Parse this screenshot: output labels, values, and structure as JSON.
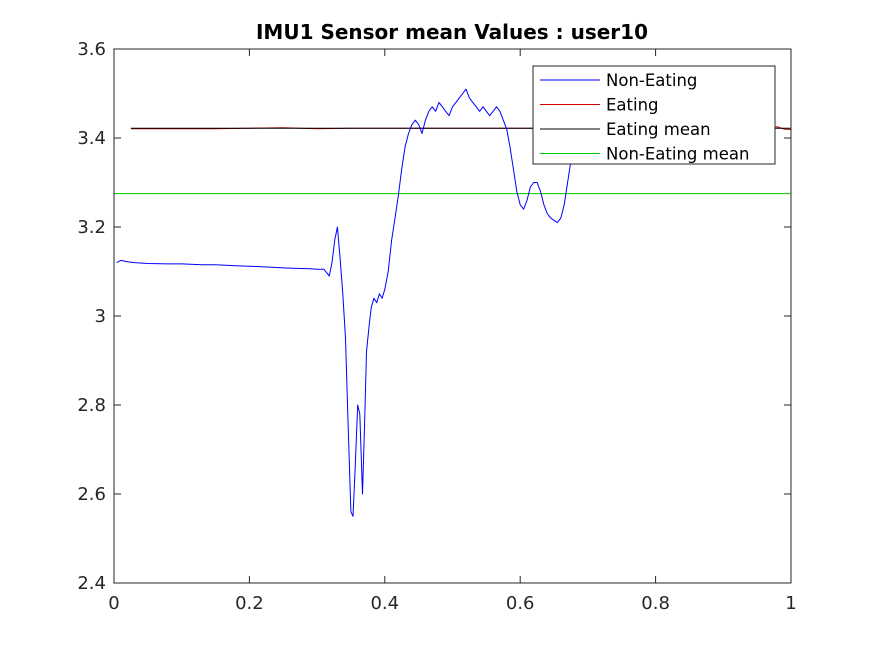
{
  "chart_data": {
    "type": "line",
    "title": "IMU1 Sensor mean Values : user10",
    "xlabel": "",
    "ylabel": "",
    "xlim": [
      0,
      1
    ],
    "ylim": [
      2.4,
      3.6
    ],
    "xticks": [
      0,
      0.2,
      0.4,
      0.6,
      0.8,
      1
    ],
    "xtick_labels": [
      "0",
      "0.2",
      "0.4",
      "0.6",
      "0.8",
      "1"
    ],
    "yticks": [
      2.4,
      2.6,
      2.8,
      3.0,
      3.2,
      3.4,
      3.6
    ],
    "ytick_labels": [
      "2.4",
      "2.6",
      "2.8",
      "3",
      "3.2",
      "3.4",
      "3.6"
    ],
    "grid": false,
    "legend_position": "top-right",
    "series": [
      {
        "name": "Non-Eating",
        "color": "#0000ff",
        "x": [
          0.004,
          0.01,
          0.02,
          0.03,
          0.05,
          0.08,
          0.1,
          0.13,
          0.15,
          0.18,
          0.2,
          0.23,
          0.25,
          0.27,
          0.29,
          0.3,
          0.31,
          0.318,
          0.322,
          0.326,
          0.33,
          0.334,
          0.338,
          0.342,
          0.346,
          0.35,
          0.353,
          0.356,
          0.36,
          0.363,
          0.367,
          0.37,
          0.373,
          0.377,
          0.38,
          0.384,
          0.388,
          0.392,
          0.396,
          0.4,
          0.405,
          0.41,
          0.415,
          0.42,
          0.425,
          0.43,
          0.435,
          0.44,
          0.445,
          0.45,
          0.455,
          0.46,
          0.465,
          0.47,
          0.475,
          0.48,
          0.485,
          0.49,
          0.495,
          0.5,
          0.505,
          0.51,
          0.515,
          0.52,
          0.525,
          0.53,
          0.535,
          0.54,
          0.545,
          0.55,
          0.555,
          0.56,
          0.565,
          0.57,
          0.575,
          0.58,
          0.585,
          0.59,
          0.595,
          0.6,
          0.605,
          0.61,
          0.615,
          0.62,
          0.625,
          0.63,
          0.635,
          0.64,
          0.645,
          0.65,
          0.655,
          0.66,
          0.665,
          0.67,
          0.675,
          0.68
        ],
        "y": [
          3.12,
          3.125,
          3.122,
          3.12,
          3.118,
          3.117,
          3.117,
          3.115,
          3.115,
          3.113,
          3.112,
          3.11,
          3.108,
          3.107,
          3.106,
          3.105,
          3.105,
          3.09,
          3.12,
          3.17,
          3.2,
          3.13,
          3.05,
          2.95,
          2.75,
          2.56,
          2.55,
          2.65,
          2.8,
          2.78,
          2.6,
          2.75,
          2.92,
          2.98,
          3.02,
          3.04,
          3.03,
          3.05,
          3.04,
          3.06,
          3.1,
          3.17,
          3.22,
          3.27,
          3.33,
          3.38,
          3.41,
          3.43,
          3.44,
          3.43,
          3.41,
          3.44,
          3.46,
          3.47,
          3.46,
          3.48,
          3.47,
          3.46,
          3.45,
          3.47,
          3.48,
          3.49,
          3.5,
          3.51,
          3.49,
          3.48,
          3.47,
          3.46,
          3.47,
          3.46,
          3.45,
          3.46,
          3.47,
          3.46,
          3.44,
          3.42,
          3.38,
          3.33,
          3.28,
          3.25,
          3.24,
          3.26,
          3.29,
          3.3,
          3.3,
          3.28,
          3.25,
          3.23,
          3.22,
          3.215,
          3.21,
          3.22,
          3.25,
          3.3,
          3.35,
          3.38
        ]
      },
      {
        "name": "Eating",
        "color": "#cc0000",
        "x": [
          0.025,
          0.1,
          0.15,
          0.2,
          0.25,
          0.3,
          0.35,
          0.4,
          0.45,
          0.5,
          0.55,
          0.6,
          0.65,
          0.7,
          0.75,
          0.8,
          0.85,
          0.9,
          0.95,
          0.98,
          0.99,
          1.0
        ],
        "y": [
          3.421,
          3.421,
          3.421,
          3.422,
          3.423,
          3.421,
          3.422,
          3.422,
          3.422,
          3.422,
          3.422,
          3.422,
          3.422,
          3.422,
          3.422,
          3.422,
          3.422,
          3.422,
          3.422,
          3.425,
          3.42,
          3.419
        ]
      },
      {
        "name": "Eating mean",
        "color": "#000000",
        "x": [
          0.025,
          1.0
        ],
        "y": [
          3.422,
          3.422
        ]
      },
      {
        "name": "Non-Eating mean",
        "color": "#00cc00",
        "x": [
          0.0,
          1.0
        ],
        "y": [
          3.275,
          3.275
        ]
      }
    ]
  }
}
